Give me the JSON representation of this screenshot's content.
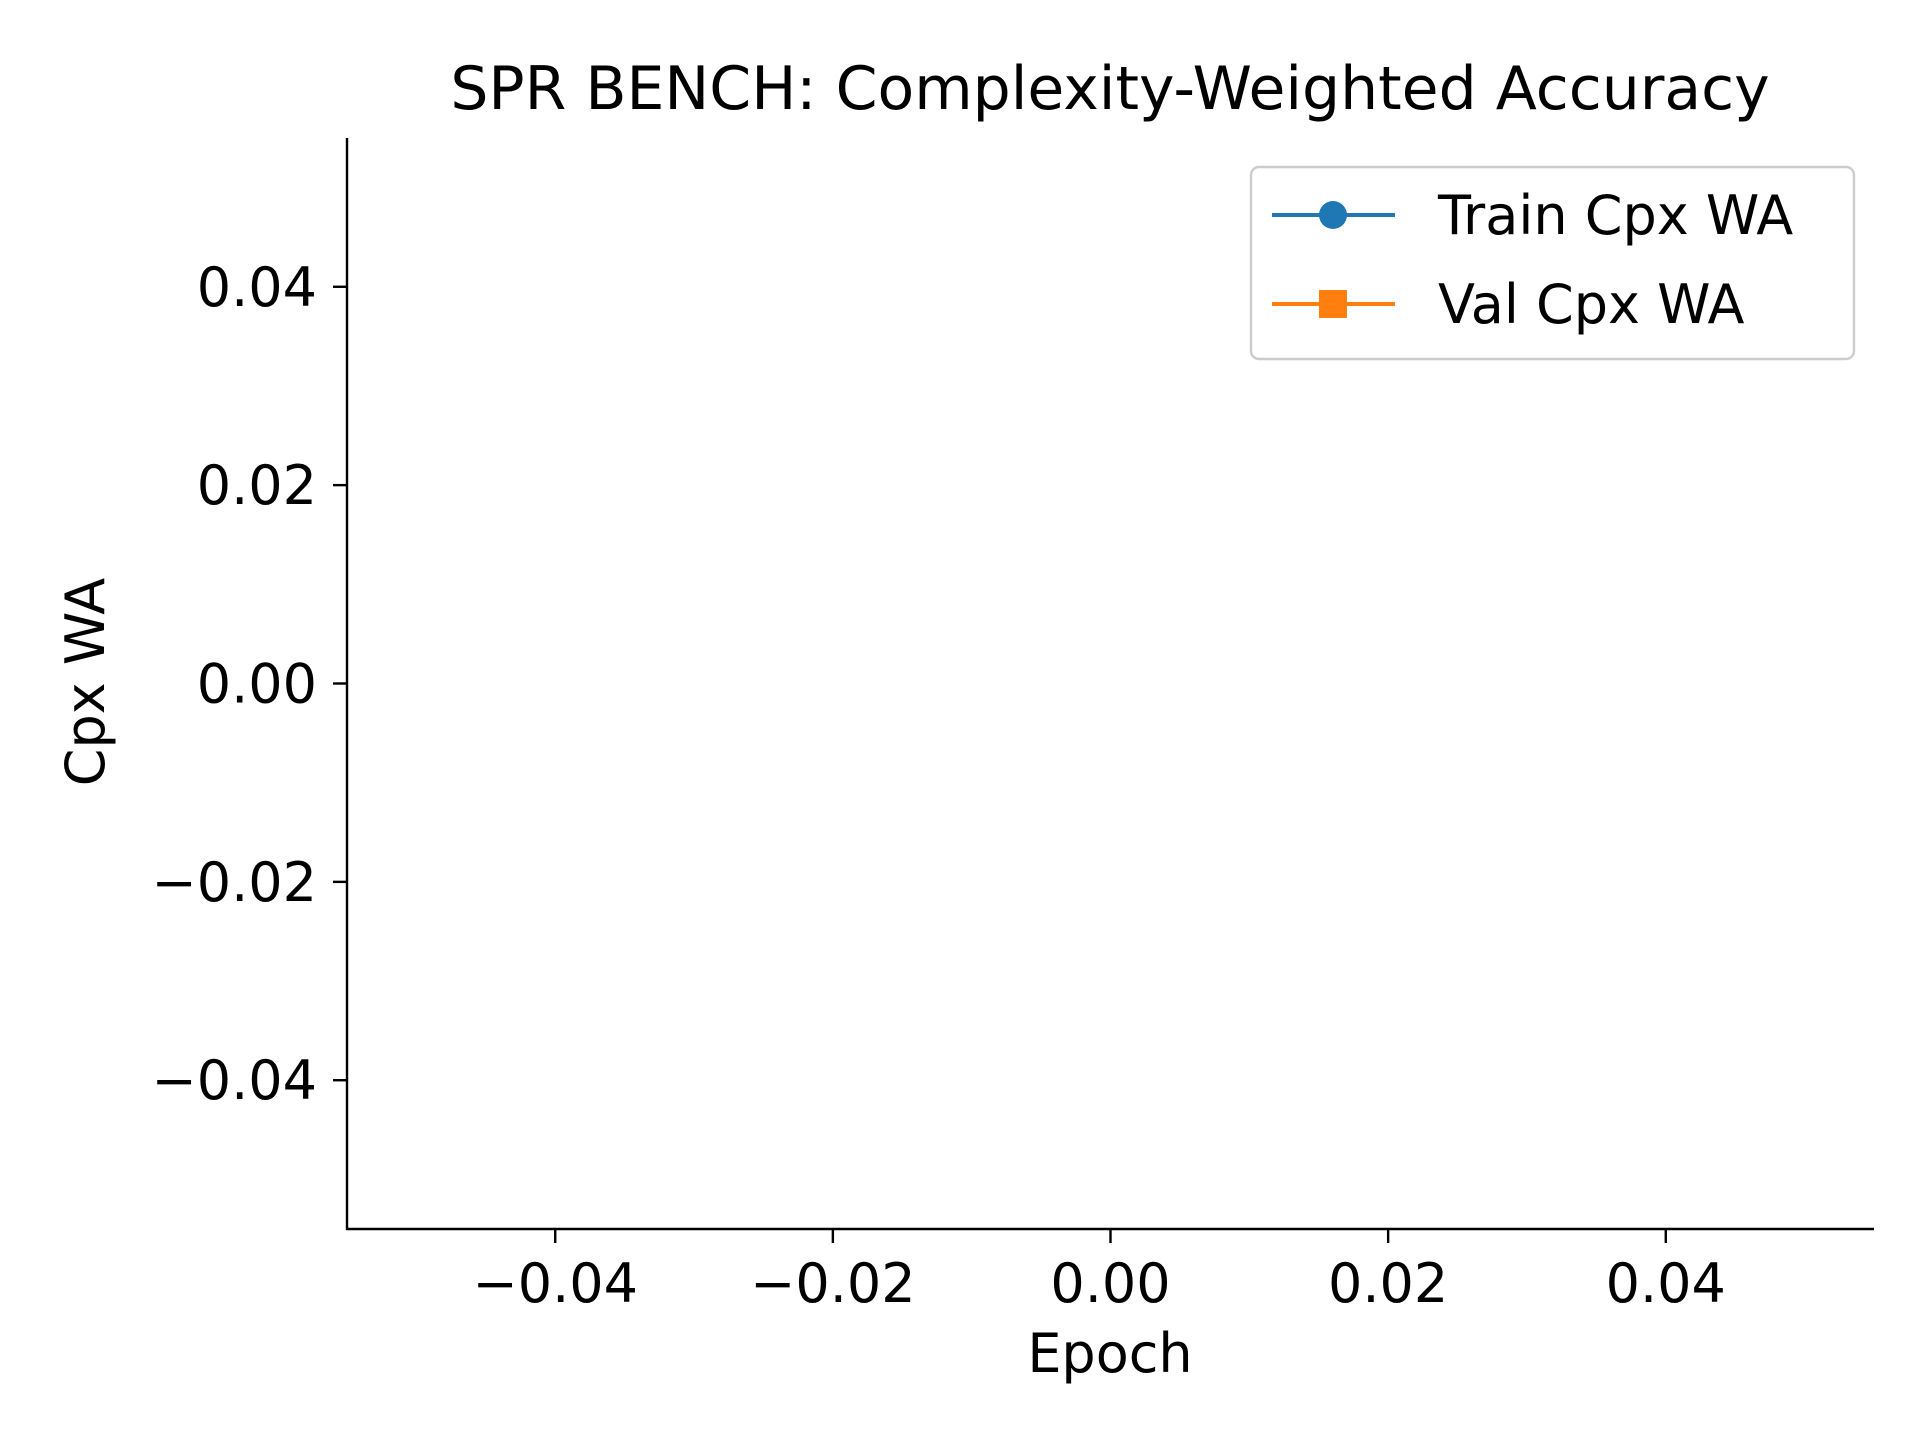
{
  "chart_data": {
    "type": "line",
    "title": "SPR BENCH: Complexity-Weighted Accuracy",
    "xlabel": "Epoch",
    "ylabel": "Cpx WA",
    "xlim": [
      -0.055,
      0.055
    ],
    "ylim": [
      -0.055,
      0.055
    ],
    "xticks": [
      -0.04,
      -0.02,
      0.0,
      0.02,
      0.04
    ],
    "yticks": [
      -0.04,
      -0.02,
      0.0,
      0.02,
      0.04
    ],
    "xtick_labels": [
      "−0.04",
      "−0.02",
      "0.00",
      "0.02",
      "0.04"
    ],
    "ytick_labels": [
      "−0.04",
      "−0.02",
      "0.00",
      "0.02",
      "0.04"
    ],
    "grid": false,
    "legend_position": "top-right",
    "series": [
      {
        "name": "Train Cpx WA",
        "color": "#1f77b4",
        "marker": "circle",
        "x": [],
        "values": []
      },
      {
        "name": "Val Cpx WA",
        "color": "#ff7f0e",
        "marker": "square",
        "x": [],
        "values": []
      }
    ]
  }
}
